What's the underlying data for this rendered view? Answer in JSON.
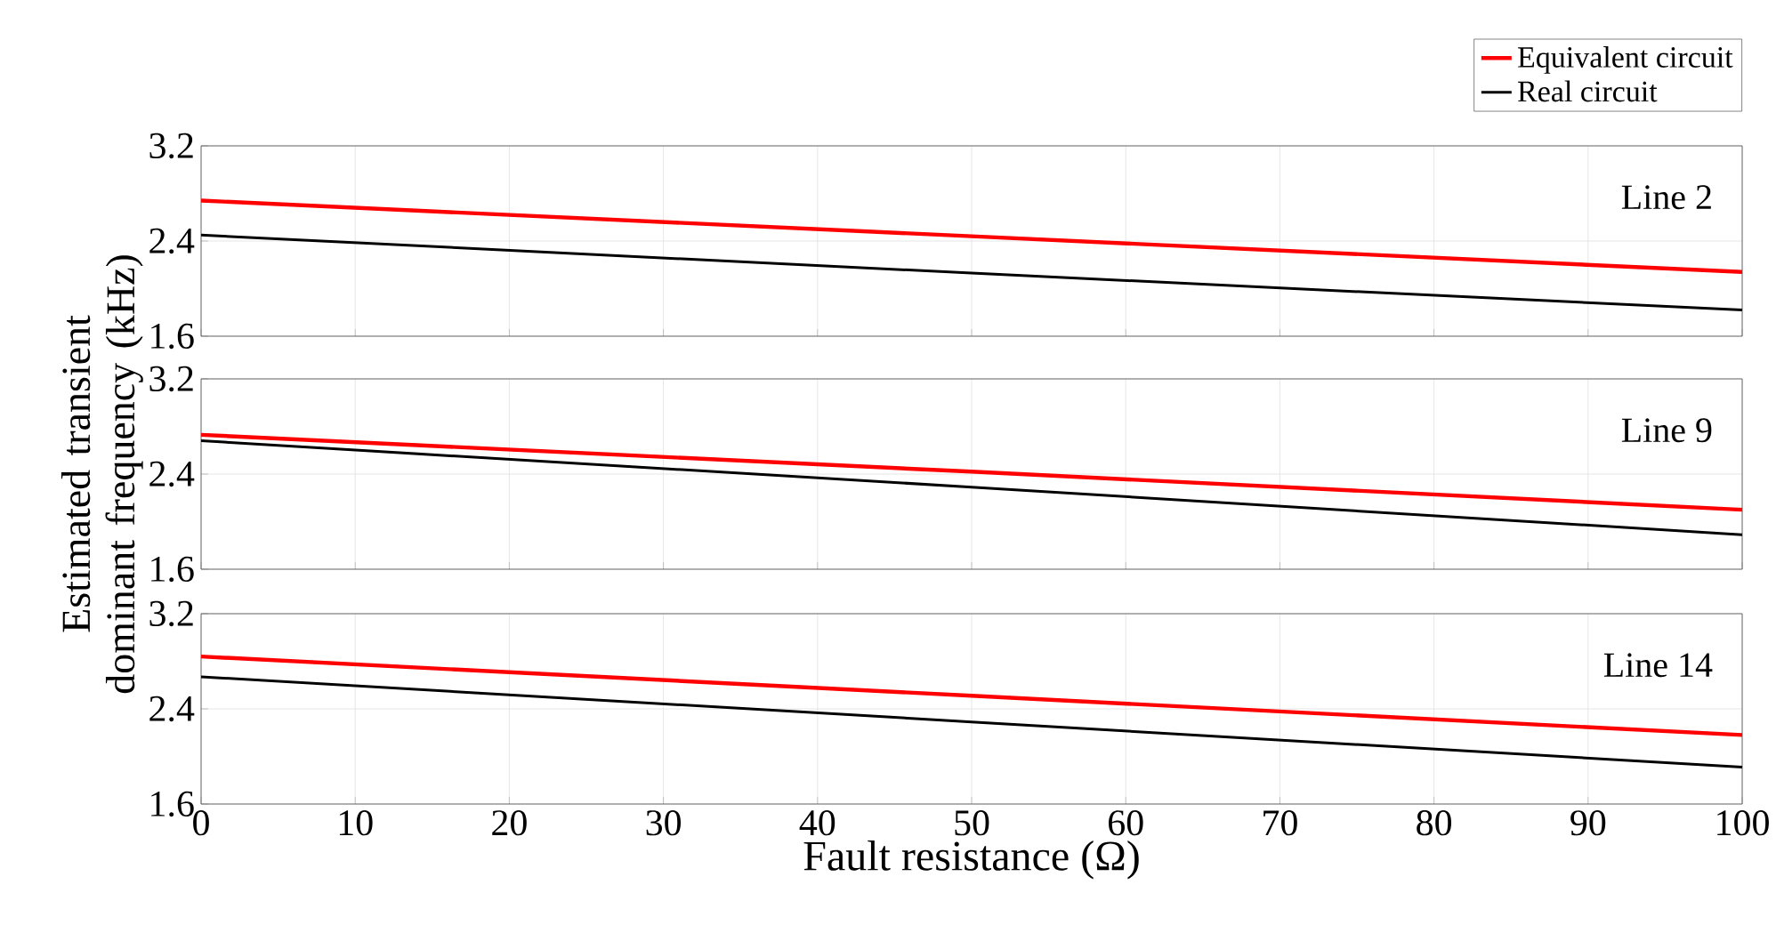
{
  "chart_data": [
    {
      "type": "line",
      "xlim": [
        0,
        100
      ],
      "xticks": [
        0,
        10,
        20,
        30,
        40,
        50,
        60,
        70,
        80,
        90,
        100
      ],
      "ylim": [
        1.6,
        3.2
      ],
      "yticks": [
        1.6,
        2.4,
        3.2
      ],
      "grid": true,
      "tick_labels": "y",
      "legend": "top right",
      "annotations": [
        "Line 2"
      ],
      "series": [
        {
          "name": "Equivalent circuit",
          "color": "#ff0000",
          "x": [
            0,
            50,
            100
          ],
          "values": [
            2.74,
            2.44,
            2.14
          ]
        },
        {
          "name": "Real circuit",
          "color": "#000000",
          "x": [
            0,
            50,
            100
          ],
          "values": [
            2.45,
            2.13,
            1.82
          ]
        }
      ]
    },
    {
      "type": "line",
      "xlim": [
        0,
        100
      ],
      "xticks": [
        0,
        10,
        20,
        30,
        40,
        50,
        60,
        70,
        80,
        90,
        100
      ],
      "ylim": [
        1.6,
        3.2
      ],
      "yticks": [
        1.6,
        2.4,
        3.2
      ],
      "grid": true,
      "tick_labels": "y",
      "ylabel": "Estimated transient dominant frequency (kHz)",
      "annotations": [
        "Line 9"
      ],
      "series": [
        {
          "color": "#ff0000",
          "x": [
            0,
            50,
            100
          ],
          "values": [
            2.73,
            2.42,
            2.1
          ]
        },
        {
          "color": "#000000",
          "x": [
            0,
            50,
            100
          ],
          "values": [
            2.68,
            2.29,
            1.89
          ]
        }
      ]
    },
    {
      "type": "line",
      "xlim": [
        0,
        100
      ],
      "xticks": [
        0,
        10,
        20,
        30,
        40,
        50,
        60,
        70,
        80,
        90,
        100
      ],
      "ylim": [
        1.6,
        3.2
      ],
      "yticks": [
        1.6,
        2.4,
        3.2
      ],
      "grid": true,
      "xlabel": "Fault resistance (Ω)",
      "annotations": [
        "Line 14"
      ],
      "series": [
        {
          "color": "#ff0000",
          "x": [
            0,
            50,
            100
          ],
          "values": [
            2.84,
            2.51,
            2.18
          ]
        },
        {
          "color": "#000000",
          "x": [
            0,
            50,
            100
          ],
          "values": [
            2.67,
            2.29,
            1.91
          ]
        }
      ]
    }
  ]
}
